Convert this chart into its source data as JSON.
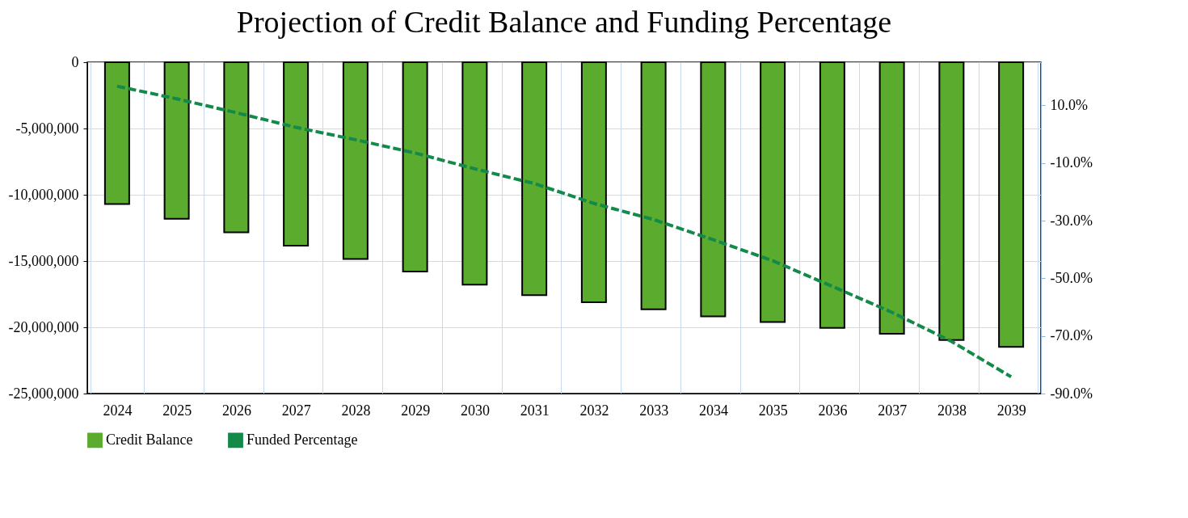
{
  "chart_data": {
    "type": "bar",
    "title": "Projection of Credit Balance and Funding Percentage",
    "categories": [
      "2024",
      "2025",
      "2026",
      "2027",
      "2028",
      "2029",
      "2030",
      "2031",
      "2032",
      "2033",
      "2034",
      "2035",
      "2036",
      "2037",
      "2038",
      "2039"
    ],
    "series": [
      {
        "name": "Credit Balance",
        "color": "#5aab2e",
        "values": [
          -10700000,
          -11820000,
          -12830000,
          -13840000,
          -14850000,
          -15800000,
          -16780000,
          -17580000,
          -18110000,
          -18650000,
          -19180000,
          -19600000,
          -20040000,
          -20490000,
          -20960000,
          -21480000
        ]
      },
      {
        "name": "Funded Percentage",
        "type": "line",
        "axis": "y2",
        "color": "#138a4a",
        "line_style": "dashed",
        "values": [
          16.7,
          12.3,
          7.5,
          2.4,
          -1.9,
          -6.5,
          -12.0,
          -17.1,
          -24.0,
          -29.6,
          -36.6,
          -43.9,
          -52.8,
          -61.8,
          -71.9,
          -84.2
        ]
      }
    ],
    "ylim": [
      -25000000,
      0
    ],
    "yticks": [
      {
        "value": -25000000,
        "label": "-25,000,000"
      },
      {
        "value": -20000000,
        "label": "-20,000,000"
      },
      {
        "value": -15000000,
        "label": "-15,000,000"
      },
      {
        "value": -10000000,
        "label": "-10,000,000"
      },
      {
        "value": -5000000,
        "label": "-5,000,000"
      },
      0
    ],
    "y2lim": [
      -90,
      25
    ],
    "y2ticks": [
      {
        "value": -90,
        "label": "-90.0%"
      },
      {
        "value": -70,
        "label": "-70.0%"
      },
      {
        "value": -50,
        "label": "-50.0%"
      },
      {
        "value": -30,
        "label": "-30.0%"
      },
      {
        "value": -10,
        "label": "-10.0%"
      },
      {
        "value": 10,
        "label": "10.0%"
      }
    ],
    "grid": true,
    "legend": "bottom"
  }
}
